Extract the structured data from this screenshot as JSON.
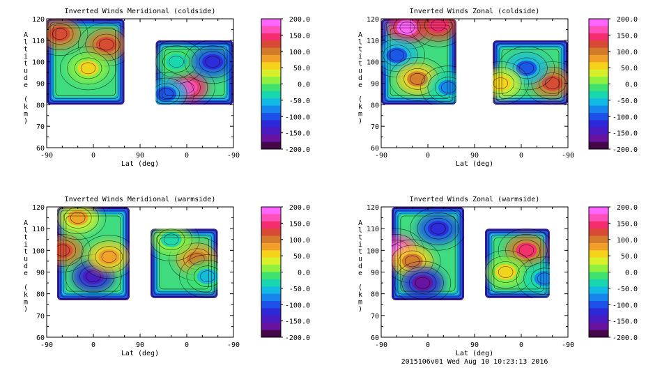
{
  "figure": {
    "footer": "2015106v01 Wed Aug 10 10:23:13 2016"
  },
  "colorbar": {
    "labels": [
      "200.0",
      "150.0",
      "100.0",
      "50.0",
      "0.0",
      "-50.0",
      "-100.0",
      "-150.0",
      "-200.0"
    ],
    "colors": [
      "#ff66ff",
      "#ff4fb8",
      "#f52d6f",
      "#d84a35",
      "#d47a2d",
      "#f0a028",
      "#f7d21a",
      "#d7f02a",
      "#8ff040",
      "#3fe26e",
      "#18d7b0",
      "#12b9e2",
      "#1686ee",
      "#1c52e8",
      "#2e29d8",
      "#4a1bc0",
      "#6a12a0",
      "#44084a"
    ]
  },
  "chart_data": [
    {
      "type": "contour",
      "title": "Inverted Winds Meridional (coldside)",
      "xlabel": "Lat (deg)",
      "ylabel": "Altitude (km)",
      "xticks": [
        "-90",
        "0",
        "90",
        "0",
        "-90"
      ],
      "yticks": [
        "60",
        "70",
        "80",
        "90",
        "100",
        "110",
        "120"
      ],
      "ylim": [
        60,
        120
      ],
      "zlim": [
        -200,
        200
      ],
      "regions": [
        {
          "x_from": -90,
          "x_to": 60,
          "alt_bottom": 80,
          "alt_top": 120
        },
        {
          "x_from": 120,
          "x_to": 270,
          "alt_bottom": 80,
          "alt_top": 110
        }
      ],
      "features": [
        {
          "x": -65,
          "alt": 113,
          "value": 100
        },
        {
          "x": 25,
          "alt": 108,
          "value": 90
        },
        {
          "x": -10,
          "alt": 97,
          "value": 20
        },
        {
          "x": 180,
          "alt": 88,
          "value": 140
        },
        {
          "x": 160,
          "alt": 100,
          "value": -10
        },
        {
          "x": 230,
          "alt": 100,
          "value": -90
        },
        {
          "x": 140,
          "alt": 85,
          "value": -60
        }
      ]
    },
    {
      "type": "contour",
      "title": "Inverted Winds Zonal (coldside)",
      "xlabel": "Lat (deg)",
      "ylabel": "Altitude (km)",
      "xticks": [
        "-90",
        "0",
        "90",
        "0",
        "-90"
      ],
      "yticks": [
        "60",
        "70",
        "80",
        "90",
        "100",
        "110",
        "120"
      ],
      "ylim": [
        60,
        120
      ],
      "zlim": [
        -200,
        200
      ],
      "regions": [
        {
          "x_from": -90,
          "x_to": 55,
          "alt_bottom": 80,
          "alt_top": 120
        },
        {
          "x_from": 125,
          "x_to": 270,
          "alt_bottom": 80,
          "alt_top": 110
        }
      ],
      "features": [
        {
          "x": -40,
          "alt": 116,
          "value": 150
        },
        {
          "x": 20,
          "alt": 117,
          "value": 120
        },
        {
          "x": -60,
          "alt": 103,
          "value": -60
        },
        {
          "x": -20,
          "alt": 92,
          "value": 60
        },
        {
          "x": 40,
          "alt": 88,
          "value": -40
        },
        {
          "x": 240,
          "alt": 90,
          "value": 100
        },
        {
          "x": 190,
          "alt": 97,
          "value": -60
        },
        {
          "x": 140,
          "alt": 90,
          "value": 30
        }
      ]
    },
    {
      "type": "contour",
      "title": "Inverted Winds Meridional (warmside)",
      "xlabel": "Lat (deg)",
      "ylabel": "Altitude (km)",
      "xticks": [
        "-90",
        "0",
        "90",
        "0",
        "-90"
      ],
      "yticks": [
        "60",
        "70",
        "80",
        "90",
        "100",
        "110",
        "120"
      ],
      "ylim": [
        60,
        120
      ],
      "zlim": [
        -200,
        200
      ],
      "regions": [
        {
          "x_from": -70,
          "x_to": 70,
          "alt_bottom": 77,
          "alt_top": 120
        },
        {
          "x_from": 110,
          "x_to": 240,
          "alt_bottom": 78,
          "alt_top": 110
        }
      ],
      "features": [
        {
          "x": -60,
          "alt": 100,
          "value": 100
        },
        {
          "x": -30,
          "alt": 115,
          "value": 40
        },
        {
          "x": 0,
          "alt": 88,
          "value": -120
        },
        {
          "x": 30,
          "alt": 97,
          "value": 50
        },
        {
          "x": 200,
          "alt": 96,
          "value": 80
        },
        {
          "x": 150,
          "alt": 105,
          "value": 0
        },
        {
          "x": 220,
          "alt": 88,
          "value": -20
        }
      ]
    },
    {
      "type": "contour",
      "title": "Inverted Winds Zonal (warmside)",
      "xlabel": "Lat (deg)",
      "ylabel": "Altitude (km)",
      "xticks": [
        "-90",
        "0",
        "90",
        "0",
        "-90"
      ],
      "yticks": [
        "60",
        "70",
        "80",
        "90",
        "100",
        "110",
        "120"
      ],
      "ylim": [
        60,
        120
      ],
      "zlim": [
        -200,
        200
      ],
      "regions": [
        {
          "x_from": -70,
          "x_to": 70,
          "alt_bottom": 77,
          "alt_top": 120
        },
        {
          "x_from": 110,
          "x_to": 235,
          "alt_bottom": 78,
          "alt_top": 110
        }
      ],
      "features": [
        {
          "x": -62,
          "alt": 100,
          "value": 160
        },
        {
          "x": -30,
          "alt": 95,
          "value": 60
        },
        {
          "x": 20,
          "alt": 110,
          "value": -100
        },
        {
          "x": -10,
          "alt": 85,
          "value": -130
        },
        {
          "x": 190,
          "alt": 100,
          "value": 110
        },
        {
          "x": 150,
          "alt": 90,
          "value": 20
        },
        {
          "x": 225,
          "alt": 87,
          "value": -40
        }
      ]
    }
  ]
}
